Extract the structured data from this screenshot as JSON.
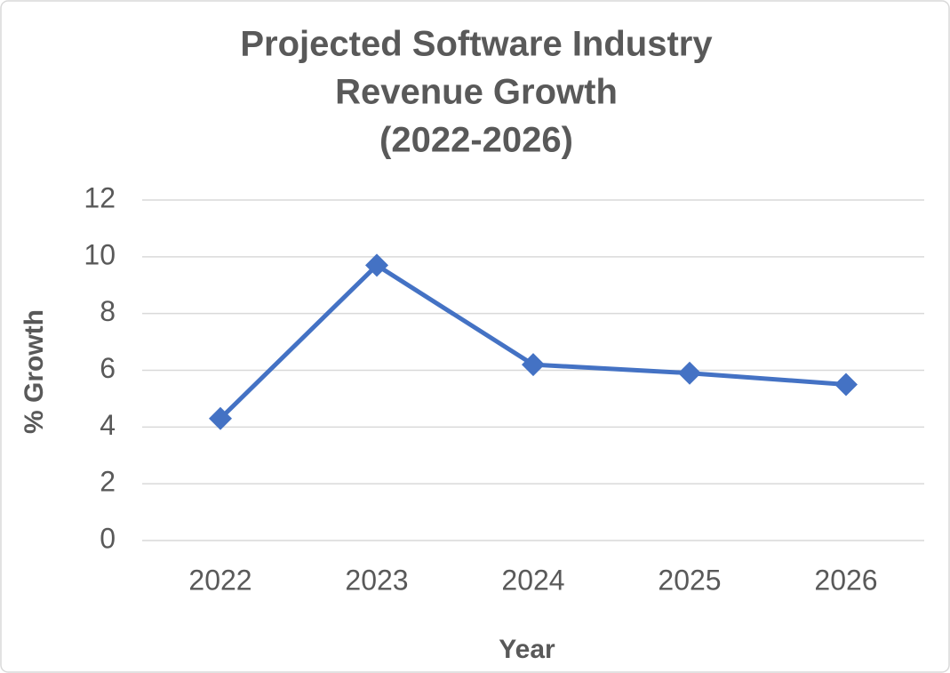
{
  "chart_data": {
    "type": "line",
    "title": [
      "Projected Software Industry",
      "Revenue Growth",
      "(2022-2026)"
    ],
    "x_label": "Year",
    "y_label": "% Growth",
    "categories": [
      "2022",
      "2023",
      "2024",
      "2025",
      "2026"
    ],
    "series": [
      {
        "name": "% Growth",
        "color": "#4472c4",
        "values": [
          4.3,
          9.7,
          6.2,
          5.9,
          5.5
        ]
      }
    ],
    "ylim": [
      0,
      12
    ],
    "yticks": [
      0,
      2,
      4,
      6,
      8,
      10,
      12
    ],
    "grid": true,
    "legend": false
  }
}
